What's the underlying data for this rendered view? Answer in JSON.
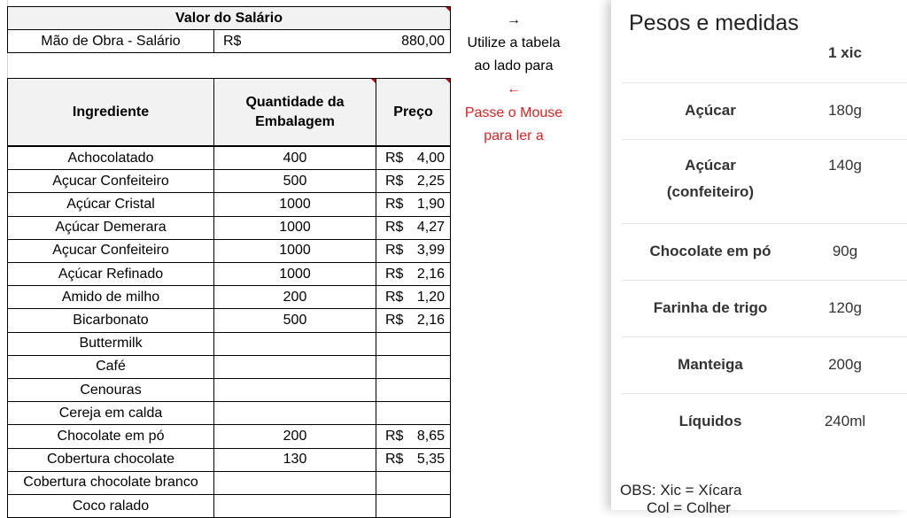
{
  "salary": {
    "title": "Valor do Salário",
    "label": "Mão de Obra - Salário",
    "currency": "R$",
    "value": "880,00"
  },
  "table": {
    "headers": [
      "Ingrediente",
      "Quantidade da Embalagem",
      "Preço"
    ],
    "rows": [
      {
        "ingredient": "Achocolatado",
        "qty": "400",
        "price": "4,00"
      },
      {
        "ingredient": "Açucar Confeiteiro",
        "qty": "500",
        "price": "2,25"
      },
      {
        "ingredient": "Açúcar Cristal",
        "qty": "1000",
        "price": "1,90"
      },
      {
        "ingredient": "Açúcar Demerara",
        "qty": "1000",
        "price": "4,27"
      },
      {
        "ingredient": "Açucar Confeiteiro",
        "qty": "1000",
        "price": "3,99"
      },
      {
        "ingredient": "Açúcar Refinado",
        "qty": "1000",
        "price": "2,16"
      },
      {
        "ingredient": "Amido de milho",
        "qty": "200",
        "price": "1,20"
      },
      {
        "ingredient": "Bicarbonato",
        "qty": "500",
        "price": "2,16"
      },
      {
        "ingredient": "Buttermilk",
        "qty": "",
        "price": ""
      },
      {
        "ingredient": "Café",
        "qty": "",
        "price": ""
      },
      {
        "ingredient": "Cenouras",
        "qty": "",
        "price": ""
      },
      {
        "ingredient": "Cereja em calda",
        "qty": "",
        "price": ""
      },
      {
        "ingredient": "Chocolate em pó",
        "qty": "200",
        "price": "8,65"
      },
      {
        "ingredient": "Cobertura chocolate",
        "qty": "130",
        "price": "5,35"
      },
      {
        "ingredient": "Cobertura chocolate branco",
        "qty": "",
        "price": ""
      },
      {
        "ingredient": "Coco ralado",
        "qty": "",
        "price": ""
      }
    ],
    "currency": "R$"
  },
  "side_notes": {
    "arrow_right": "→",
    "line1": "Utilize a tabela",
    "line2": "ao lado para",
    "arrow_left": "←",
    "line3": "Passe o Mouse",
    "line4": "para ler a"
  },
  "panel": {
    "title": "Pesos e medidas",
    "column": "1 xic",
    "rows": [
      {
        "name": "Açúcar",
        "name2": "",
        "qty": "180g"
      },
      {
        "name": "Açúcar",
        "name2": "(confeiteiro)",
        "qty": "140g"
      },
      {
        "name": "Chocolate em pó",
        "name2": "",
        "qty": "90g"
      },
      {
        "name": "Farinha de trigo",
        "name2": "",
        "qty": "120g"
      },
      {
        "name": "Manteiga",
        "name2": "",
        "qty": "200g"
      },
      {
        "name": "Líquidos",
        "name2": "",
        "qty": "240ml"
      }
    ],
    "obs_line1": "OBS: Xic = Xícara",
    "obs_line2": "Col = Colher"
  },
  "colors": {
    "note_red": "#c00000",
    "hint_red": "#e02020",
    "header_gray": "#f2f2f2"
  }
}
